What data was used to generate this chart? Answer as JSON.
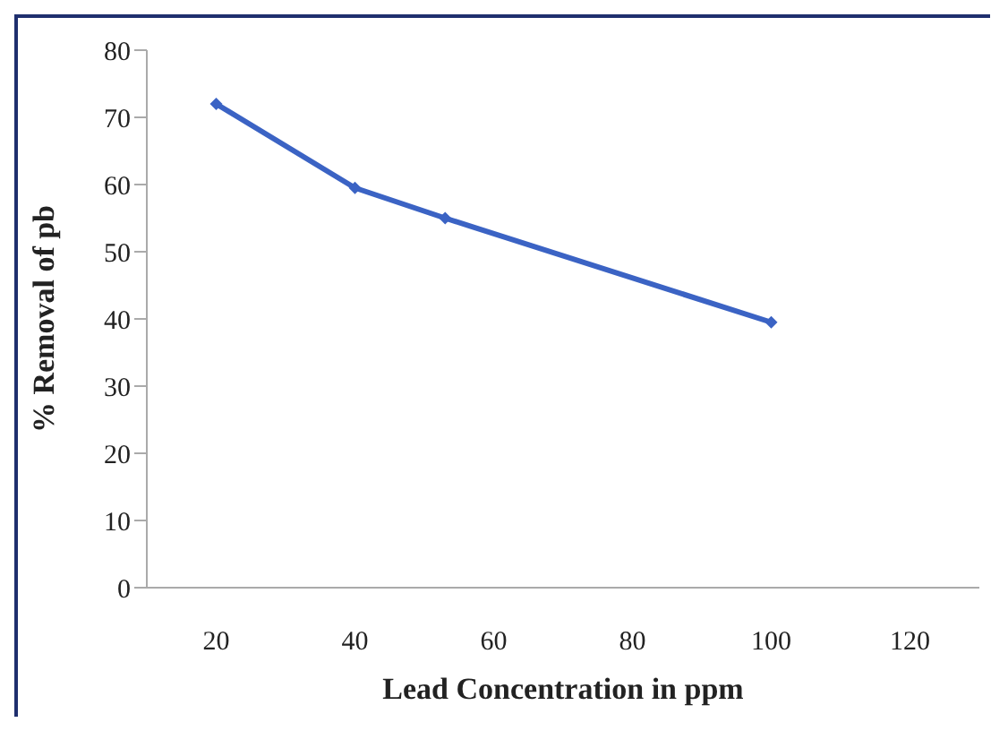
{
  "chart_data": {
    "type": "line",
    "xlabel": "Lead Concentration in ppm",
    "ylabel": "% Removal of pb",
    "x": [
      20,
      40,
      53,
      100
    ],
    "series": [
      {
        "color": "#3b63c4",
        "values": [
          72,
          59.5,
          55,
          39.5
        ]
      }
    ],
    "xlim": [
      10,
      130
    ],
    "xticks": [
      20,
      40,
      60,
      80,
      100,
      120
    ],
    "ylim": [
      0,
      80
    ],
    "yticks": [
      0,
      10,
      20,
      30,
      40,
      50,
      60,
      70,
      80
    ],
    "grid": false,
    "marker": "diamond",
    "line_style": "solid"
  }
}
